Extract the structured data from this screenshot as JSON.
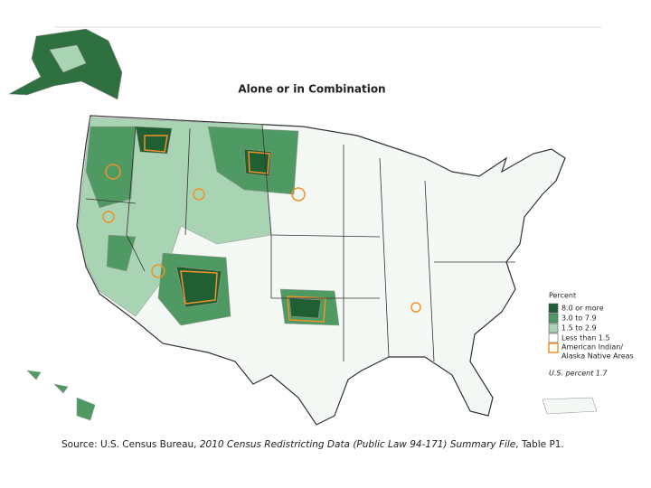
{
  "title": "Alone or in Combination",
  "legend": {
    "title": "Percent",
    "items": [
      {
        "label": "8.0 or more",
        "color": "#1f5f31"
      },
      {
        "label": "3.0 to 7.9",
        "color": "#4f9962"
      },
      {
        "label": "1.5 to 2.9",
        "color": "#a9d4b3"
      },
      {
        "label": "Less than 1.5",
        "color": "#ffffff"
      }
    ],
    "areas": {
      "lines": [
        "American Indian/",
        "Alaska Native Areas"
      ],
      "color": "#f0922a"
    },
    "note": "U.S. percent 1.7"
  },
  "source": {
    "prefix": "Source: U.S. Census Bureau, ",
    "title": "2010 Census Redistricting Data (Public Law 94-171) Summary File",
    "suffix": ", Table P1."
  }
}
